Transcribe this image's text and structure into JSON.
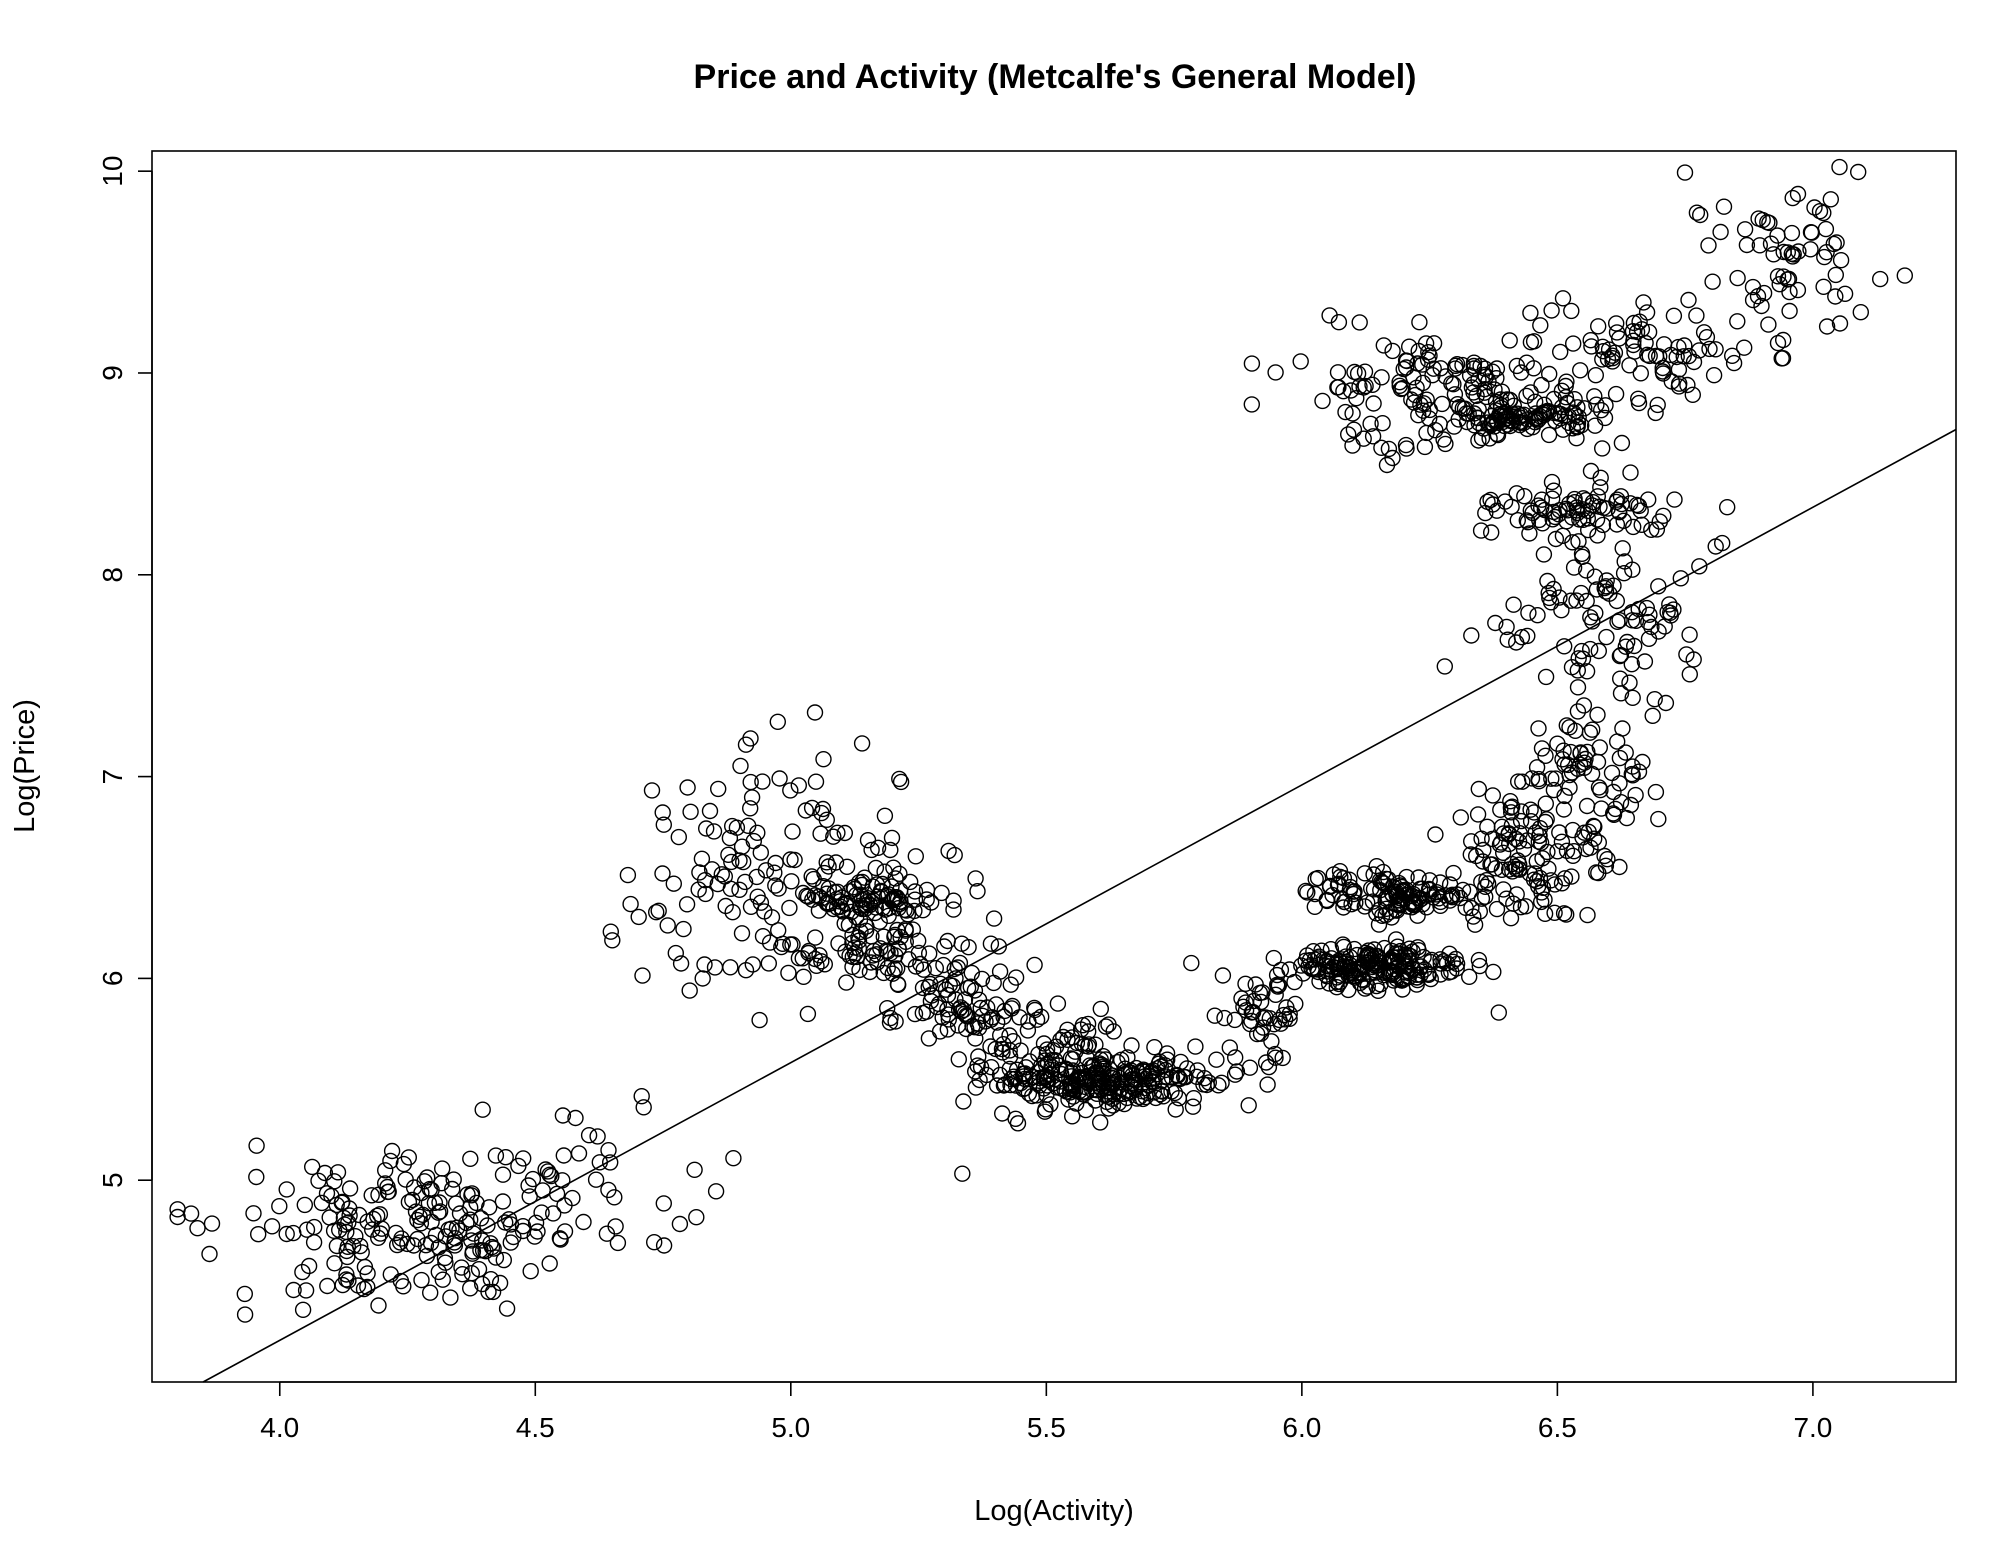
{
  "chart_data": {
    "type": "scatter",
    "title": "Price and Activity (Metcalfe's General Model)",
    "xlabel": "Log(Activity)",
    "ylabel": "Log(Price)",
    "xlim": [
      3.75,
      7.28
    ],
    "ylim": [
      4.0,
      10.1
    ],
    "x_ticks": [
      "4.0",
      "4.5",
      "5.0",
      "5.5",
      "6.0",
      "6.5",
      "7.0"
    ],
    "x_tick_values": [
      4.0,
      4.5,
      5.0,
      5.5,
      6.0,
      6.5,
      7.0
    ],
    "y_ticks": [
      "5",
      "6",
      "7",
      "8",
      "9",
      "10"
    ],
    "y_tick_values": [
      5,
      6,
      7,
      8,
      9,
      10
    ],
    "grid": false,
    "legend": "none",
    "marker": "open-circle",
    "fit_line": {
      "x": [
        3.85,
        7.28
      ],
      "y": [
        4.0,
        8.72
      ]
    },
    "clusters": [
      {
        "cx": 4.25,
        "cy": 4.75,
        "sx": 0.18,
        "sy": 0.17,
        "n": 210
      },
      {
        "cx": 4.6,
        "cy": 5.05,
        "sx": 0.13,
        "sy": 0.22,
        "n": 30
      },
      {
        "cx": 4.88,
        "cy": 6.55,
        "sx": 0.1,
        "sy": 0.32,
        "n": 80
      },
      {
        "cx": 5.12,
        "cy": 6.6,
        "sx": 0.1,
        "sy": 0.25,
        "n": 60
      },
      {
        "cx": 5.18,
        "cy": 6.4,
        "sx": 0.08,
        "sy": 0.05,
        "n": 90
      },
      {
        "cx": 5.12,
        "cy": 6.12,
        "sx": 0.09,
        "sy": 0.07,
        "n": 70
      },
      {
        "cx": 5.32,
        "cy": 5.88,
        "sx": 0.07,
        "sy": 0.13,
        "n": 70
      },
      {
        "cx": 5.45,
        "cy": 5.6,
        "sx": 0.06,
        "sy": 0.2,
        "n": 40
      },
      {
        "cx": 5.62,
        "cy": 5.48,
        "sx": 0.1,
        "sy": 0.06,
        "n": 230
      },
      {
        "cx": 5.55,
        "cy": 5.65,
        "sx": 0.07,
        "sy": 0.1,
        "n": 50
      },
      {
        "cx": 5.92,
        "cy": 5.78,
        "sx": 0.06,
        "sy": 0.15,
        "n": 50
      },
      {
        "cx": 6.15,
        "cy": 6.06,
        "sx": 0.08,
        "sy": 0.05,
        "n": 200
      },
      {
        "cx": 6.18,
        "cy": 6.42,
        "sx": 0.08,
        "sy": 0.06,
        "n": 130
      },
      {
        "cx": 6.42,
        "cy": 6.55,
        "sx": 0.06,
        "sy": 0.15,
        "n": 90
      },
      {
        "cx": 6.55,
        "cy": 6.95,
        "sx": 0.07,
        "sy": 0.2,
        "n": 100
      },
      {
        "cx": 6.58,
        "cy": 7.8,
        "sx": 0.1,
        "sy": 0.22,
        "n": 100
      },
      {
        "cx": 6.55,
        "cy": 8.33,
        "sx": 0.09,
        "sy": 0.08,
        "n": 80
      },
      {
        "cx": 6.3,
        "cy": 8.9,
        "sx": 0.15,
        "sy": 0.14,
        "n": 170
      },
      {
        "cx": 6.45,
        "cy": 8.78,
        "sx": 0.08,
        "sy": 0.03,
        "n": 80
      },
      {
        "cx": 6.68,
        "cy": 9.1,
        "sx": 0.1,
        "sy": 0.18,
        "n": 70
      },
      {
        "cx": 6.95,
        "cy": 9.55,
        "sx": 0.1,
        "sy": 0.18,
        "n": 70
      }
    ]
  }
}
